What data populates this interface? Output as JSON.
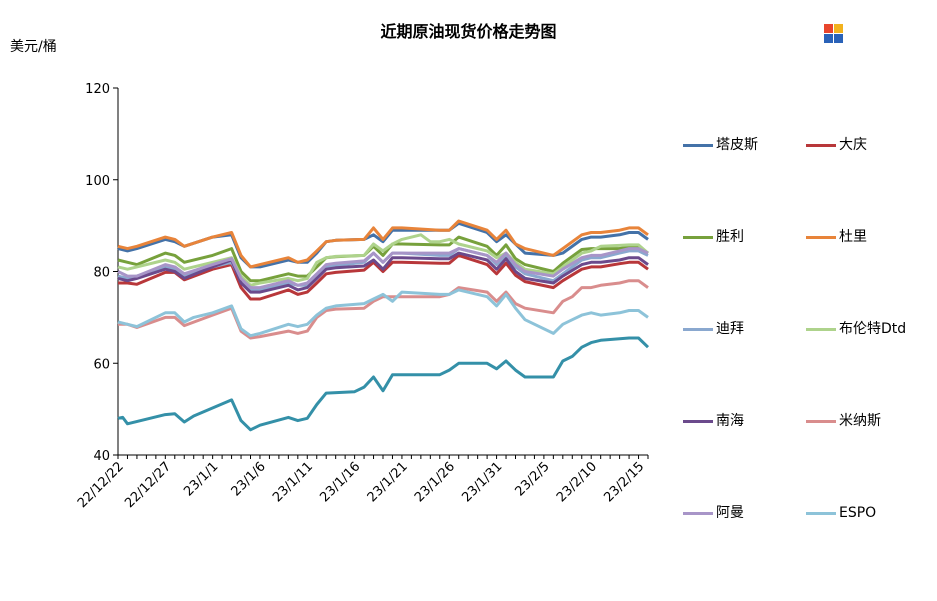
{
  "chart_data": {
    "type": "line",
    "title": "近期原油现货价格走势图",
    "ylabel": "美元/桶",
    "xlabel": "",
    "ylim": [
      40,
      120
    ],
    "yticks": [
      40,
      60,
      80,
      100,
      120
    ],
    "grid": false,
    "legend_position": "right",
    "x_tick_labels": [
      "22/12/22",
      "22/12/27",
      "23/1/1",
      "23/1/6",
      "23/1/11",
      "23/1/16",
      "23/1/21",
      "23/1/26",
      "23/1/31",
      "23/2/5",
      "23/2/10",
      "23/2/15"
    ],
    "x_tick_positions": [
      0,
      5,
      10,
      15,
      20,
      25,
      30,
      35,
      40,
      45,
      50,
      55
    ],
    "x_extent": [
      0,
      56
    ],
    "series": [
      {
        "name": "塔皮斯",
        "color": "#4472a8",
        "x": [
          0,
          1,
          2,
          5,
          6,
          7,
          10,
          12,
          13,
          14,
          15,
          18,
          19,
          20,
          21,
          22,
          23,
          26,
          27,
          28,
          29,
          30,
          34,
          35,
          36,
          39,
          40,
          41,
          42,
          43,
          46,
          47,
          49,
          50,
          51,
          53,
          54,
          55,
          56
        ],
        "y": [
          85,
          84.5,
          85,
          87,
          86.5,
          85.5,
          87.5,
          88,
          83,
          81,
          81,
          82.5,
          82,
          82,
          84,
          86.5,
          86.8,
          87,
          88,
          86.5,
          89,
          89,
          89,
          89,
          90.5,
          88.5,
          86.5,
          88,
          86,
          84,
          83.5,
          84,
          87,
          87.5,
          87.5,
          88,
          88.5,
          88.5,
          87
        ]
      },
      {
        "name": "大庆",
        "color": "#b8373a",
        "x": [
          0,
          1,
          2,
          5,
          6,
          7,
          10,
          12,
          13,
          14,
          15,
          18,
          19,
          20,
          21,
          22,
          23,
          26,
          27,
          28,
          29,
          30,
          34,
          35,
          36,
          39,
          40,
          41,
          42,
          43,
          46,
          47,
          49,
          50,
          51,
          53,
          54,
          55,
          56
        ],
        "y": [
          77.5,
          77.5,
          77.2,
          79.8,
          79.8,
          78.2,
          80.5,
          81.5,
          76.5,
          74,
          74,
          76,
          75,
          75.5,
          77.5,
          79.5,
          79.8,
          80.3,
          82,
          80,
          82,
          82,
          81.8,
          81.8,
          83.5,
          81.5,
          79.5,
          81.8,
          79.2,
          77.8,
          76.5,
          78,
          80.5,
          81,
          81,
          81.7,
          82,
          82,
          80.5
        ]
      },
      {
        "name": "胜利",
        "color": "#77a13c",
        "x": [
          0,
          1,
          2,
          5,
          6,
          7,
          10,
          12,
          13,
          14,
          15,
          18,
          19,
          20,
          21,
          22,
          23,
          26,
          27,
          28,
          29,
          30,
          34,
          35,
          36,
          39,
          40,
          41,
          42,
          43,
          46,
          47,
          49,
          50,
          51,
          53,
          54,
          55,
          56
        ],
        "y": [
          82.5,
          82,
          81.5,
          84,
          83.5,
          82,
          83.5,
          85,
          80,
          78,
          78,
          79.5,
          79,
          79,
          81,
          83,
          83.2,
          83.5,
          85.5,
          83.5,
          86,
          86,
          85.8,
          85.8,
          87.5,
          85.5,
          83.5,
          85.8,
          82.8,
          81.5,
          80,
          81.8,
          84.8,
          85,
          85,
          85,
          85.5,
          85.5,
          84
        ]
      },
      {
        "name": "杜里",
        "color": "#e8843a",
        "x": [
          0,
          1,
          2,
          5,
          6,
          7,
          10,
          12,
          13,
          14,
          15,
          18,
          19,
          20,
          21,
          22,
          23,
          26,
          27,
          28,
          29,
          30,
          34,
          35,
          36,
          39,
          40,
          41,
          42,
          43,
          46,
          47,
          49,
          50,
          51,
          53,
          54,
          55,
          56
        ],
        "y": [
          85.5,
          85,
          85.5,
          87.5,
          87,
          85.5,
          87.5,
          88.5,
          83.5,
          81,
          81.5,
          83,
          82,
          82.5,
          84.5,
          86.5,
          86.8,
          87,
          89.5,
          87,
          89.5,
          89.5,
          89,
          89,
          91,
          89,
          87,
          89,
          86,
          85,
          83.5,
          85,
          88,
          88.5,
          88.5,
          89,
          89.5,
          89.5,
          88
        ]
      },
      {
        "name": "迪拜",
        "color": "#8aa8cf",
        "x": [
          0,
          1,
          2,
          5,
          6,
          7,
          10,
          12,
          13,
          14,
          15,
          18,
          19,
          20,
          21,
          22,
          23,
          26,
          27,
          28,
          29,
          30,
          34,
          35,
          36,
          39,
          40,
          41,
          42,
          43,
          46,
          47,
          49,
          50,
          51,
          53,
          54,
          55,
          56
        ],
        "y": [
          79,
          78.5,
          79,
          81,
          80.5,
          79,
          81,
          82,
          78,
          76,
          76,
          77.5,
          77,
          77,
          79,
          81,
          81.3,
          82,
          84,
          82,
          84,
          84,
          83.5,
          83.5,
          85,
          83.5,
          81.5,
          83.5,
          81,
          79.5,
          78,
          79.5,
          82.5,
          83,
          83,
          84,
          84.5,
          84.5,
          83.5
        ]
      },
      {
        "name": "布伦特Dtd",
        "color": "#aed38c",
        "x": [
          0,
          1,
          2,
          5,
          6,
          7,
          10,
          12,
          13,
          14,
          15,
          18,
          19,
          20,
          21,
          22,
          23,
          26,
          27,
          28,
          29,
          30,
          32,
          33,
          34,
          35,
          36,
          39,
          40,
          41,
          42,
          43,
          46,
          47,
          49,
          50,
          51,
          53,
          54,
          55,
          56
        ],
        "y": [
          81,
          80.5,
          81,
          82.5,
          82,
          80.5,
          82,
          83,
          79,
          77,
          77.5,
          78.5,
          78,
          78.5,
          82,
          83,
          83.3,
          83.5,
          86,
          84.5,
          86,
          87,
          88,
          86.5,
          86.5,
          87,
          86,
          84.5,
          83,
          84,
          82,
          80.5,
          79.5,
          81,
          84,
          84.5,
          85.5,
          85.7,
          85.8,
          85.8,
          84
        ]
      },
      {
        "name": "南海",
        "color": "#6b4a8c",
        "x": [
          0,
          1,
          2,
          5,
          6,
          7,
          10,
          12,
          13,
          14,
          15,
          18,
          19,
          20,
          21,
          22,
          23,
          26,
          27,
          28,
          29,
          30,
          34,
          35,
          36,
          39,
          40,
          41,
          42,
          43,
          46,
          47,
          49,
          50,
          51,
          53,
          54,
          55,
          56
        ],
        "y": [
          78.5,
          78,
          78.5,
          80.5,
          80,
          78.5,
          81,
          82.5,
          77.5,
          75.5,
          75.5,
          77,
          76,
          76.5,
          78.5,
          80.5,
          80.8,
          81.2,
          82.5,
          80.5,
          83,
          83,
          82.8,
          82.8,
          84,
          82.5,
          80.5,
          82.8,
          80,
          78.5,
          77.5,
          79,
          81.5,
          82,
          82,
          82.5,
          83,
          83,
          81.5
        ]
      },
      {
        "name": "米纳斯",
        "color": "#d98d8d",
        "x": [
          0,
          1,
          2,
          5,
          6,
          7,
          10,
          12,
          13,
          14,
          15,
          18,
          19,
          20,
          21,
          22,
          23,
          26,
          27,
          28,
          29,
          30,
          34,
          35,
          36,
          39,
          40,
          41,
          42,
          43,
          46,
          47,
          48,
          49,
          50,
          51,
          53,
          54,
          55,
          56
        ],
        "y": [
          68.5,
          68.5,
          67.8,
          70,
          70,
          68.2,
          70.5,
          72,
          67,
          65.5,
          65.8,
          67,
          66.5,
          67,
          70,
          71.5,
          71.8,
          72,
          73.5,
          74.5,
          74.5,
          74.5,
          74.5,
          75,
          76.5,
          75.5,
          73.5,
          75.5,
          73,
          72,
          71,
          73.5,
          74.5,
          76.5,
          76.5,
          77,
          77.5,
          78,
          78,
          76.5
        ]
      },
      {
        "name": "阿曼",
        "color": "#a895c8",
        "x": [
          0,
          1,
          2,
          5,
          6,
          7,
          10,
          12,
          13,
          14,
          15,
          18,
          19,
          20,
          21,
          22,
          23,
          26,
          27,
          28,
          29,
          30,
          34,
          35,
          36,
          39,
          40,
          41,
          42,
          43,
          46,
          47,
          49,
          50,
          51,
          53,
          54,
          55,
          56
        ],
        "y": [
          80,
          79,
          79,
          81.5,
          81,
          79.5,
          81.5,
          82.8,
          78.5,
          76.5,
          76.5,
          78,
          77,
          77.5,
          79.5,
          81.5,
          81.8,
          82.3,
          84,
          82,
          84,
          84,
          84,
          84,
          85,
          83.5,
          82,
          84,
          81.5,
          80,
          79,
          80.5,
          83,
          83.5,
          83.5,
          84.5,
          85,
          85,
          84
        ]
      },
      {
        "name": "ESPO",
        "color": "#8dc3d9",
        "x": [
          0,
          1,
          2,
          5,
          6,
          7,
          8,
          10,
          12,
          13,
          14,
          15,
          18,
          19,
          20,
          21,
          22,
          23,
          26,
          27,
          28,
          29,
          30,
          34,
          35,
          36,
          39,
          40,
          41,
          42,
          43,
          46,
          47,
          48,
          49,
          50,
          51,
          53,
          54,
          55,
          56
        ],
        "y": [
          69,
          68.5,
          68,
          71,
          71,
          69,
          70,
          71,
          72.5,
          67.5,
          66,
          66.5,
          68.5,
          68,
          68.5,
          70.5,
          72,
          72.5,
          73,
          74,
          75,
          73.5,
          75.5,
          75,
          75,
          76,
          74.5,
          72.5,
          75,
          72,
          69.5,
          66.5,
          68.5,
          69.5,
          70.5,
          71,
          70.5,
          71,
          71.5,
          71.5,
          70
        ]
      },
      {
        "name": "",
        "color": "#3490a8",
        "x": [
          0,
          0.5,
          1,
          5,
          6,
          7,
          8,
          12,
          13,
          14,
          15,
          18,
          19,
          20,
          21,
          22,
          25,
          26,
          27,
          28,
          29,
          34,
          35,
          36,
          39,
          40,
          41,
          42,
          43,
          46,
          47,
          48,
          49,
          50,
          51,
          54,
          55,
          56
        ],
        "y": [
          48,
          48.2,
          46.8,
          48.8,
          49,
          47.2,
          48.5,
          52,
          47.5,
          45.5,
          46.5,
          48.2,
          47.5,
          48,
          51,
          53.5,
          53.8,
          54.8,
          57,
          54,
          57.5,
          57.5,
          58.5,
          60,
          60,
          58.8,
          60.5,
          58.5,
          57,
          57,
          60.5,
          61.5,
          63.5,
          64.5,
          65,
          65.5,
          65.5,
          63.5
        ]
      }
    ]
  }
}
